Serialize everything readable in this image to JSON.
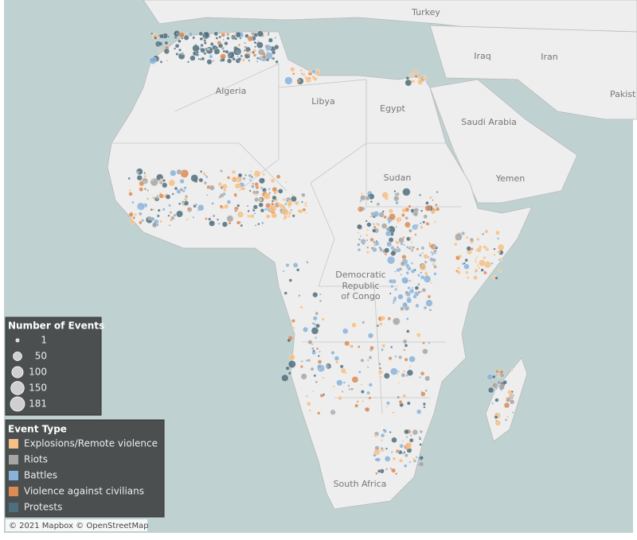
{
  "map": {
    "place_labels": [
      "Turkey",
      "Iraq",
      "Iran",
      "Pakist",
      "Algeria",
      "Libya",
      "Egypt",
      "Saudi Arabia",
      "Sudan",
      "Yemen",
      "Democratic",
      "Republic",
      "of Congo",
      "South Africa"
    ],
    "size_legend": {
      "title": "Number of Events",
      "values": [
        1,
        50,
        100,
        150,
        181
      ]
    },
    "color_legend": {
      "title": "Event Type",
      "items": [
        {
          "name": "Explosions/Remote violence",
          "color": "#f5bf86"
        },
        {
          "name": "Riots",
          "color": "#a6a6a6"
        },
        {
          "name": "Battles",
          "color": "#8ab3d9"
        },
        {
          "name": "Violence against civilians",
          "color": "#dc8b55"
        },
        {
          "name": "Protests",
          "color": "#4f6e7d"
        }
      ]
    },
    "attribution": "© 2021 Mapbox © OpenStreetMap"
  }
}
